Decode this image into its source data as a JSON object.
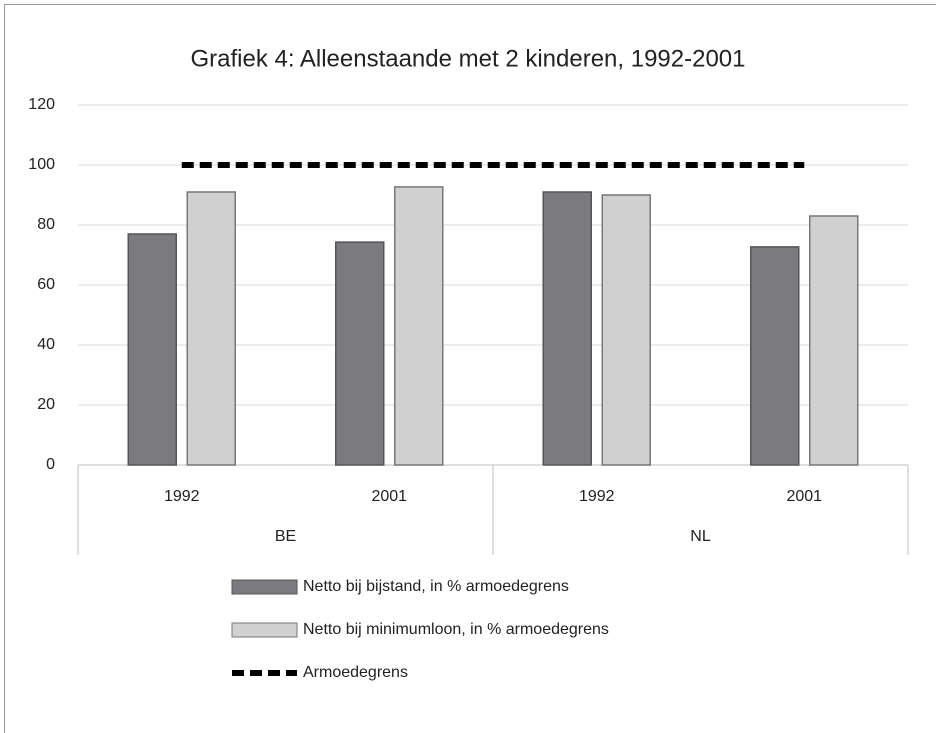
{
  "chart_data": {
    "type": "bar",
    "title": "Grafiek 4: Alleenstaande met 2 kinderen, 1992-2001",
    "categories": [
      "1992",
      "2001",
      "1992",
      "2001"
    ],
    "groups": [
      "BE",
      "NL"
    ],
    "series": [
      {
        "name": "Netto bij bijstand, in % armoedegrens",
        "type": "bar",
        "color": "#7b7b7f",
        "values": [
          77,
          74.3,
          91,
          72.7
        ]
      },
      {
        "name": "Netto bij minimumloon, in % armoedegrens",
        "type": "bar",
        "color": "#d0d0d0",
        "values": [
          91,
          92.7,
          90,
          83
        ]
      },
      {
        "name": "Armoedegrens",
        "type": "line",
        "color": "#000000",
        "values": [
          100,
          100,
          100,
          100
        ]
      }
    ],
    "ylim": [
      0,
      120
    ],
    "yticks": [
      0,
      20,
      40,
      60,
      80,
      100,
      120
    ],
    "grid": true
  }
}
